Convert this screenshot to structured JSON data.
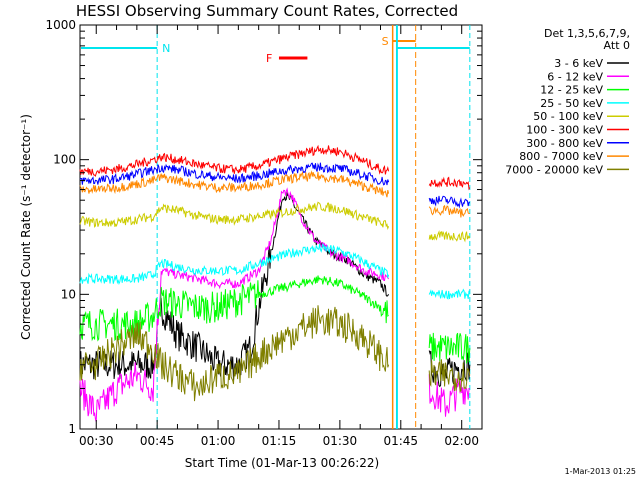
{
  "chart_data": {
    "type": "line",
    "title": "HESSI Observing Summary Count Rates, Corrected",
    "xlabel": "Start Time (01-Mar-13 00:26:22)",
    "ylabel": "Corrected Count Rate (s⁻¹ detector⁻¹)",
    "y_scale": "log",
    "ylim": [
      1,
      1000
    ],
    "y_ticks": [
      "1",
      "10",
      "100",
      "1000"
    ],
    "xlim": [
      "00:26",
      "02:05"
    ],
    "x_ticks": [
      "00:30",
      "00:45",
      "01:00",
      "01:15",
      "01:30",
      "01:45",
      "02:00"
    ],
    "legend_header": [
      "Det 1,3,5,6,7,9,",
      "Att 0"
    ],
    "legend_position": "right",
    "footer": "1-Mar-2013 01:25",
    "gaps": [
      [
        "01:42",
        "01:51"
      ]
    ],
    "annotations": [
      {
        "label": "N",
        "color": "#00e5ee",
        "x": "00:45",
        "kind": "night"
      },
      {
        "label": "F",
        "color": "#ff0000",
        "x_range": [
          "01:15",
          "01:22"
        ],
        "kind": "flare"
      },
      {
        "label": "S",
        "color": "#ff8800",
        "x": "01:43",
        "kind": "saa"
      }
    ],
    "series": [
      {
        "name": "3 - 6 keV",
        "color": "#000000",
        "points": [
          [
            "00:26",
            3
          ],
          [
            "00:35",
            3
          ],
          [
            "00:42",
            3
          ],
          [
            "00:44",
            3
          ],
          [
            "00:46",
            8
          ],
          [
            "00:50",
            5
          ],
          [
            "00:55",
            4
          ],
          [
            "01:00",
            3
          ],
          [
            "01:05",
            3
          ],
          [
            "01:08",
            4
          ],
          [
            "01:10",
            8
          ],
          [
            "01:13",
            20
          ],
          [
            "01:16",
            55
          ],
          [
            "01:18",
            50
          ],
          [
            "01:21",
            35
          ],
          [
            "01:24",
            25
          ],
          [
            "01:28",
            20
          ],
          [
            "01:32",
            18
          ],
          [
            "01:36",
            14
          ],
          [
            "01:40",
            12
          ],
          [
            "01:42",
            10
          ],
          [
            "01:51",
            null
          ],
          [
            "01:52",
            3
          ],
          [
            "01:56",
            2.5
          ],
          [
            "02:00",
            3
          ],
          [
            "02:02",
            3
          ]
        ]
      },
      {
        "name": "6 - 12 keV",
        "color": "#ff00ff",
        "points": [
          [
            "00:26",
            2
          ],
          [
            "00:30",
            1.3
          ],
          [
            "00:35",
            2
          ],
          [
            "00:40",
            2.5
          ],
          [
            "00:44",
            2
          ],
          [
            "00:46",
            15
          ],
          [
            "00:50",
            14
          ],
          [
            "00:55",
            13
          ],
          [
            "01:00",
            12
          ],
          [
            "01:05",
            12
          ],
          [
            "01:10",
            15
          ],
          [
            "01:13",
            25
          ],
          [
            "01:16",
            60
          ],
          [
            "01:18",
            55
          ],
          [
            "01:21",
            35
          ],
          [
            "01:24",
            25
          ],
          [
            "01:28",
            20
          ],
          [
            "01:32",
            18
          ],
          [
            "01:36",
            15
          ],
          [
            "01:40",
            14
          ],
          [
            "01:42",
            13
          ],
          [
            "01:51",
            null
          ],
          [
            "01:52",
            2
          ],
          [
            "01:56",
            1.5
          ],
          [
            "02:00",
            2
          ],
          [
            "02:02",
            2
          ]
        ]
      },
      {
        "name": "12 - 25 keV",
        "color": "#00ff00",
        "points": [
          [
            "00:26",
            6
          ],
          [
            "00:30",
            6
          ],
          [
            "00:35",
            6
          ],
          [
            "00:40",
            6
          ],
          [
            "00:44",
            7
          ],
          [
            "00:46",
            9
          ],
          [
            "00:50",
            8.5
          ],
          [
            "00:55",
            8
          ],
          [
            "01:00",
            8
          ],
          [
            "01:05",
            9
          ],
          [
            "01:10",
            10
          ],
          [
            "01:15",
            11
          ],
          [
            "01:20",
            12
          ],
          [
            "01:25",
            13
          ],
          [
            "01:30",
            12
          ],
          [
            "01:35",
            10
          ],
          [
            "01:40",
            8
          ],
          [
            "01:42",
            7
          ],
          [
            "01:51",
            null
          ],
          [
            "01:52",
            4
          ],
          [
            "01:56",
            4
          ],
          [
            "02:00",
            4
          ],
          [
            "02:02",
            4
          ]
        ]
      },
      {
        "name": "25 - 50 keV",
        "color": "#00ffff",
        "points": [
          [
            "00:26",
            13
          ],
          [
            "00:30",
            13
          ],
          [
            "00:35",
            13
          ],
          [
            "00:40",
            13
          ],
          [
            "00:44",
            14
          ],
          [
            "00:46",
            17
          ],
          [
            "00:50",
            16
          ],
          [
            "00:55",
            15
          ],
          [
            "01:00",
            15
          ],
          [
            "01:05",
            15
          ],
          [
            "01:10",
            17
          ],
          [
            "01:15",
            19
          ],
          [
            "01:20",
            21
          ],
          [
            "01:25",
            22
          ],
          [
            "01:30",
            21
          ],
          [
            "01:35",
            18
          ],
          [
            "01:40",
            15
          ],
          [
            "01:42",
            14
          ],
          [
            "01:51",
            null
          ],
          [
            "01:52",
            10
          ],
          [
            "01:56",
            10
          ],
          [
            "02:00",
            10
          ],
          [
            "02:02",
            10
          ]
        ]
      },
      {
        "name": "50 - 100 keV",
        "color": "#cccc00",
        "points": [
          [
            "00:26",
            35
          ],
          [
            "00:30",
            34
          ],
          [
            "00:35",
            34
          ],
          [
            "00:40",
            36
          ],
          [
            "00:44",
            38
          ],
          [
            "00:46",
            44
          ],
          [
            "00:50",
            42
          ],
          [
            "00:55",
            38
          ],
          [
            "01:00",
            36
          ],
          [
            "01:05",
            36
          ],
          [
            "01:10",
            38
          ],
          [
            "01:15",
            40
          ],
          [
            "01:20",
            43
          ],
          [
            "01:25",
            45
          ],
          [
            "01:30",
            43
          ],
          [
            "01:35",
            38
          ],
          [
            "01:40",
            34
          ],
          [
            "01:42",
            32
          ],
          [
            "01:51",
            null
          ],
          [
            "01:52",
            27
          ],
          [
            "01:56",
            27
          ],
          [
            "02:00",
            27
          ],
          [
            "02:02",
            27
          ]
        ]
      },
      {
        "name": "100 - 300 keV",
        "color": "#ff0000",
        "points": [
          [
            "00:26",
            82
          ],
          [
            "00:30",
            82
          ],
          [
            "00:35",
            85
          ],
          [
            "00:40",
            92
          ],
          [
            "00:44",
            100
          ],
          [
            "00:46",
            105
          ],
          [
            "00:50",
            100
          ],
          [
            "00:55",
            92
          ],
          [
            "01:00",
            86
          ],
          [
            "01:05",
            84
          ],
          [
            "01:10",
            90
          ],
          [
            "01:15",
            100
          ],
          [
            "01:20",
            110
          ],
          [
            "01:25",
            120
          ],
          [
            "01:30",
            115
          ],
          [
            "01:35",
            100
          ],
          [
            "01:40",
            85
          ],
          [
            "01:42",
            82
          ],
          [
            "01:51",
            null
          ],
          [
            "01:52",
            68
          ],
          [
            "01:56",
            68
          ],
          [
            "02:00",
            68
          ],
          [
            "02:02",
            62
          ]
        ]
      },
      {
        "name": "300 - 800 keV",
        "color": "#0000ff",
        "points": [
          [
            "00:26",
            70
          ],
          [
            "00:30",
            70
          ],
          [
            "00:35",
            72
          ],
          [
            "00:40",
            78
          ],
          [
            "00:44",
            84
          ],
          [
            "00:46",
            88
          ],
          [
            "00:50",
            84
          ],
          [
            "00:55",
            78
          ],
          [
            "01:00",
            74
          ],
          [
            "01:05",
            72
          ],
          [
            "01:10",
            76
          ],
          [
            "01:15",
            82
          ],
          [
            "01:20",
            86
          ],
          [
            "01:25",
            88
          ],
          [
            "01:30",
            86
          ],
          [
            "01:35",
            78
          ],
          [
            "01:40",
            70
          ],
          [
            "01:42",
            68
          ],
          [
            "01:51",
            null
          ],
          [
            "01:52",
            50
          ],
          [
            "01:56",
            50
          ],
          [
            "02:00",
            48
          ],
          [
            "02:02",
            48
          ]
        ]
      },
      {
        "name": "800 - 7000 keV",
        "color": "#ff8800",
        "points": [
          [
            "00:26",
            60
          ],
          [
            "00:30",
            60
          ],
          [
            "00:35",
            62
          ],
          [
            "00:40",
            66
          ],
          [
            "00:44",
            70
          ],
          [
            "00:46",
            74
          ],
          [
            "00:50",
            70
          ],
          [
            "00:55",
            65
          ],
          [
            "01:00",
            62
          ],
          [
            "01:05",
            62
          ],
          [
            "01:10",
            65
          ],
          [
            "01:15",
            70
          ],
          [
            "01:20",
            74
          ],
          [
            "01:25",
            75
          ],
          [
            "01:30",
            72
          ],
          [
            "01:35",
            65
          ],
          [
            "01:40",
            58
          ],
          [
            "01:42",
            56
          ],
          [
            "01:51",
            null
          ],
          [
            "01:52",
            42
          ],
          [
            "01:56",
            42
          ],
          [
            "02:00",
            40
          ],
          [
            "02:02",
            40
          ]
        ]
      },
      {
        "name": "7000 - 20000 keV",
        "color": "#808000",
        "points": [
          [
            "00:26",
            3
          ],
          [
            "00:30",
            3
          ],
          [
            "00:35",
            4
          ],
          [
            "00:40",
            5
          ],
          [
            "00:44",
            4
          ],
          [
            "00:46",
            3
          ],
          [
            "00:50",
            2.5
          ],
          [
            "00:55",
            2
          ],
          [
            "01:00",
            2.5
          ],
          [
            "01:05",
            2.5
          ],
          [
            "01:10",
            3.5
          ],
          [
            "01:15",
            4.5
          ],
          [
            "01:20",
            5.5
          ],
          [
            "01:25",
            6.5
          ],
          [
            "01:30",
            6
          ],
          [
            "01:35",
            5
          ],
          [
            "01:40",
            3.5
          ],
          [
            "01:42",
            3
          ],
          [
            "01:51",
            null
          ],
          [
            "01:52",
            2.5
          ],
          [
            "01:56",
            2.5
          ],
          [
            "02:00",
            2.5
          ],
          [
            "02:02",
            2.5
          ]
        ]
      }
    ]
  }
}
